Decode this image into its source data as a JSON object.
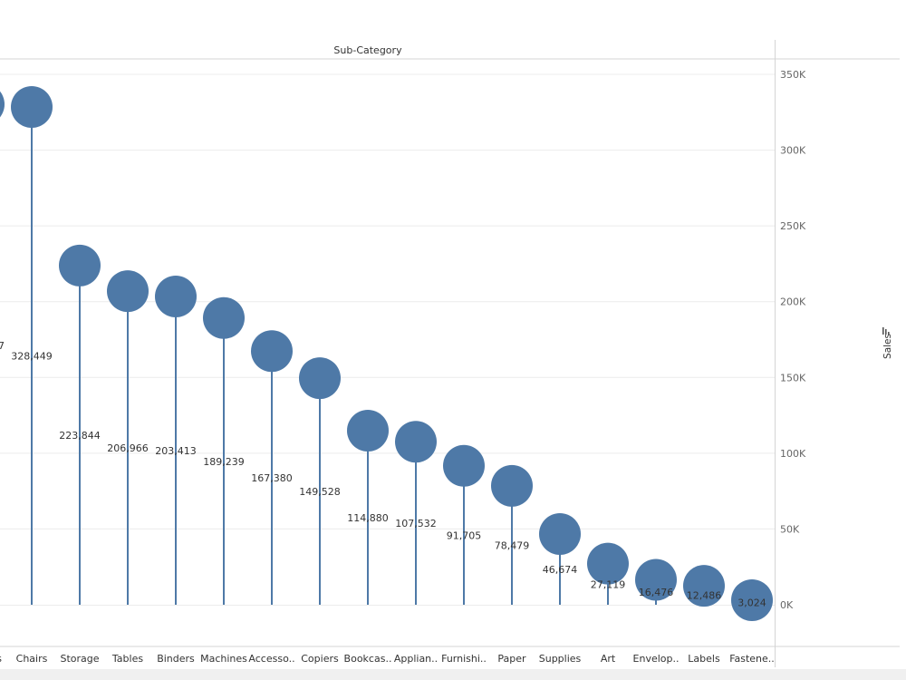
{
  "header": {
    "title": "Sub-Category"
  },
  "axis": {
    "title": "Sales"
  },
  "colors": {
    "mark": "#4e79a7",
    "grid": "#ececec",
    "border": "#d4d4d4"
  },
  "chart_data": {
    "type": "lollipop",
    "title": "Sub-Category",
    "ylabel": "Sales",
    "ylim": [
      0,
      350000
    ],
    "yticks": [
      0,
      50000,
      100000,
      150000,
      200000,
      250000,
      300000,
      350000
    ],
    "ytick_labels": [
      "0K",
      "50K",
      "100K",
      "150K",
      "200K",
      "250K",
      "300K",
      "350K"
    ],
    "grid": true,
    "categories": [
      "s",
      "Chairs",
      "Storage",
      "Tables",
      "Binders",
      "Machines",
      "Accesso..",
      "Copiers",
      "Bookcas..",
      "Applian..",
      "Furnishi..",
      "Paper",
      "Supplies",
      "Art",
      "Envelop..",
      "Labels",
      "Fastene.."
    ],
    "values": [
      null,
      328449,
      223844,
      206966,
      203413,
      189239,
      167380,
      149528,
      114880,
      107532,
      91705,
      78479,
      46674,
      27119,
      16476,
      12486,
      3024
    ],
    "value_labels": [
      "7",
      "328,449",
      "223,844",
      "206,966",
      "203,413",
      "189,239",
      "167,380",
      "149,528",
      "114,880",
      "107,532",
      "91,705",
      "78,479",
      "46,674",
      "27,119",
      "16,476",
      "12,486",
      "3,024"
    ]
  }
}
